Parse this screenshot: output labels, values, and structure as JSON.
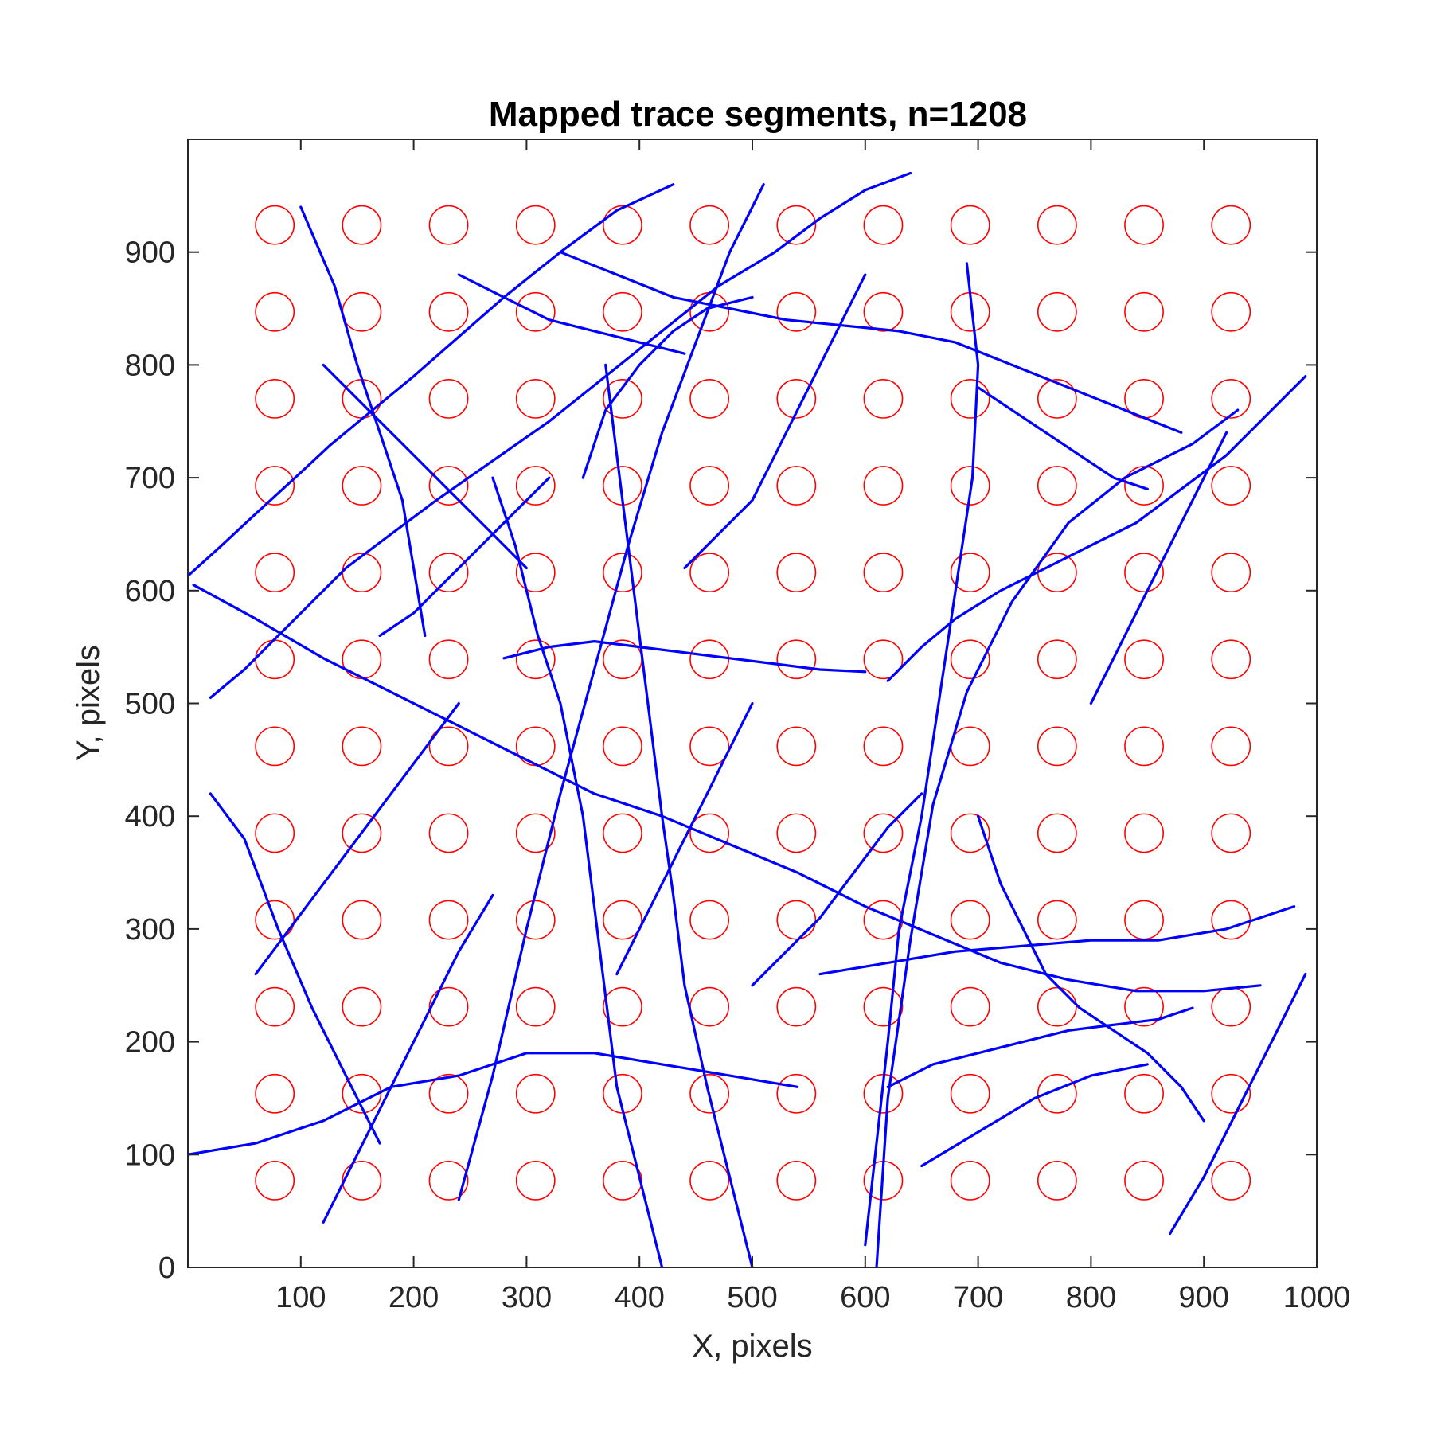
{
  "chart_data": {
    "type": "scatter",
    "title": "Mapped trace segments, n=1208",
    "xlabel": "X, pixels",
    "ylabel": "Y, pixels",
    "xlim": [
      0,
      1000
    ],
    "ylim": [
      0,
      1000
    ],
    "x_ticks": [
      100,
      200,
      300,
      400,
      500,
      600,
      700,
      800,
      900,
      1000
    ],
    "y_ticks": [
      0,
      100,
      200,
      300,
      400,
      500,
      600,
      700,
      800,
      900
    ],
    "grid": false,
    "colors": {
      "circles": "#ff0000",
      "segments": "#0000ff",
      "axes": "#262626"
    },
    "circle_grid": {
      "x": [
        77,
        154,
        231,
        308,
        385,
        462,
        539,
        616,
        693,
        770,
        847,
        924
      ],
      "y": [
        77,
        154,
        231,
        308,
        385,
        462,
        539,
        616,
        693,
        770,
        847,
        924
      ],
      "radius": 17
    },
    "series": [
      {
        "type": "segments",
        "count": 1208,
        "segments": [
          [
            [
              0,
              613
            ],
            [
              30,
              640
            ],
            [
              60,
              668
            ],
            [
              95,
              700
            ],
            [
              125,
              728
            ],
            [
              160,
              757
            ],
            [
              200,
              790
            ],
            [
              240,
              825
            ],
            [
              280,
              860
            ],
            [
              330,
              900
            ],
            [
              380,
              937
            ],
            [
              430,
              960
            ]
          ],
          [
            [
              20,
              505
            ],
            [
              50,
              530
            ],
            [
              80,
              560
            ],
            [
              110,
              590
            ],
            [
              140,
              620
            ],
            [
              180,
              650
            ],
            [
              220,
              680
            ],
            [
              270,
              715
            ],
            [
              320,
              750
            ],
            [
              370,
              790
            ],
            [
              420,
              830
            ],
            [
              470,
              870
            ],
            [
              520,
              900
            ],
            [
              560,
              930
            ],
            [
              600,
              955
            ],
            [
              640,
              970
            ]
          ],
          [
            [
              5,
              605
            ],
            [
              60,
              575
            ],
            [
              120,
              540
            ],
            [
              180,
              510
            ],
            [
              240,
              480
            ],
            [
              300,
              450
            ],
            [
              360,
              420
            ],
            [
              420,
              400
            ],
            [
              480,
              375
            ],
            [
              540,
              350
            ],
            [
              600,
              320
            ],
            [
              660,
              295
            ],
            [
              720,
              270
            ],
            [
              780,
              255
            ],
            [
              840,
              245
            ],
            [
              900,
              245
            ],
            [
              950,
              250
            ]
          ],
          [
            [
              20,
              420
            ],
            [
              50,
              380
            ],
            [
              80,
              300
            ],
            [
              110,
              230
            ],
            [
              140,
              170
            ],
            [
              170,
              110
            ]
          ],
          [
            [
              240,
              60
            ],
            [
              270,
              170
            ],
            [
              300,
              300
            ],
            [
              330,
              420
            ],
            [
              360,
              530
            ],
            [
              390,
              640
            ],
            [
              420,
              740
            ],
            [
              450,
              820
            ],
            [
              480,
              900
            ],
            [
              510,
              960
            ]
          ],
          [
            [
              420,
              0
            ],
            [
              400,
              80
            ],
            [
              380,
              160
            ],
            [
              370,
              240
            ],
            [
              360,
              320
            ],
            [
              350,
              400
            ],
            [
              330,
              500
            ],
            [
              310,
              560
            ],
            [
              290,
              640
            ],
            [
              270,
              700
            ]
          ],
          [
            [
              600,
              20
            ],
            [
              610,
              110
            ],
            [
              620,
              200
            ],
            [
              630,
              300
            ],
            [
              650,
              400
            ],
            [
              665,
              500
            ],
            [
              680,
              600
            ],
            [
              695,
              700
            ],
            [
              700,
              800
            ],
            [
              690,
              890
            ]
          ],
          [
            [
              610,
              0
            ],
            [
              620,
              150
            ],
            [
              640,
              290
            ],
            [
              660,
              410
            ],
            [
              690,
              510
            ],
            [
              730,
              590
            ],
            [
              780,
              660
            ],
            [
              830,
              700
            ],
            [
              890,
              730
            ],
            [
              930,
              760
            ]
          ],
          [
            [
              500,
              0
            ],
            [
              480,
              80
            ],
            [
              460,
              160
            ],
            [
              440,
              250
            ],
            [
              430,
              330
            ],
            [
              420,
              400
            ],
            [
              410,
              480
            ],
            [
              400,
              560
            ],
            [
              390,
              640
            ],
            [
              380,
              720
            ],
            [
              370,
              800
            ]
          ],
          [
            [
              620,
              520
            ],
            [
              650,
              550
            ],
            [
              680,
              575
            ],
            [
              720,
              600
            ],
            [
              760,
              620
            ],
            [
              800,
              640
            ],
            [
              840,
              660
            ],
            [
              880,
              690
            ],
            [
              920,
              720
            ],
            [
              960,
              760
            ],
            [
              990,
              790
            ]
          ],
          [
            [
              280,
              540
            ],
            [
              320,
              550
            ],
            [
              360,
              555
            ],
            [
              400,
              550
            ],
            [
              440,
              545
            ],
            [
              480,
              540
            ],
            [
              520,
              535
            ],
            [
              560,
              530
            ],
            [
              600,
              528
            ]
          ],
          [
            [
              330,
              900
            ],
            [
              380,
              880
            ],
            [
              430,
              860
            ],
            [
              480,
              850
            ],
            [
              530,
              840
            ],
            [
              580,
              835
            ],
            [
              630,
              830
            ],
            [
              680,
              820
            ],
            [
              730,
              800
            ],
            [
              780,
              780
            ],
            [
              830,
              760
            ],
            [
              880,
              740
            ]
          ],
          [
            [
              0,
              100
            ],
            [
              60,
              110
            ],
            [
              120,
              130
            ],
            [
              180,
              160
            ],
            [
              240,
              170
            ],
            [
              300,
              190
            ],
            [
              360,
              190
            ],
            [
              420,
              180
            ],
            [
              480,
              170
            ],
            [
              540,
              160
            ]
          ],
          [
            [
              560,
              260
            ],
            [
              620,
              270
            ],
            [
              680,
              280
            ],
            [
              740,
              285
            ],
            [
              800,
              290
            ],
            [
              860,
              290
            ],
            [
              920,
              300
            ],
            [
              980,
              320
            ]
          ],
          [
            [
              700,
              400
            ],
            [
              720,
              340
            ],
            [
              740,
              300
            ],
            [
              760,
              260
            ],
            [
              790,
              230
            ],
            [
              820,
              210
            ],
            [
              850,
              190
            ],
            [
              880,
              160
            ],
            [
              900,
              130
            ]
          ],
          [
            [
              620,
              160
            ],
            [
              660,
              180
            ],
            [
              700,
              190
            ],
            [
              740,
              200
            ],
            [
              780,
              210
            ],
            [
              820,
              215
            ],
            [
              860,
              220
            ],
            [
              890,
              230
            ]
          ],
          [
            [
              100,
              940
            ],
            [
              130,
              870
            ],
            [
              150,
              800
            ],
            [
              170,
              740
            ],
            [
              190,
              680
            ],
            [
              200,
              620
            ],
            [
              210,
              560
            ]
          ],
          [
            [
              440,
              620
            ],
            [
              470,
              650
            ],
            [
              500,
              680
            ],
            [
              520,
              720
            ],
            [
              540,
              760
            ],
            [
              560,
              800
            ],
            [
              580,
              840
            ],
            [
              600,
              880
            ]
          ],
          [
            [
              350,
              700
            ],
            [
              370,
              760
            ],
            [
              400,
              800
            ],
            [
              430,
              830
            ],
            [
              460,
              850
            ],
            [
              500,
              860
            ]
          ],
          [
            [
              700,
              780
            ],
            [
              730,
              760
            ],
            [
              760,
              740
            ],
            [
              790,
              720
            ],
            [
              820,
              700
            ],
            [
              850,
              690
            ]
          ],
          [
            [
              60,
              260
            ],
            [
              90,
              300
            ],
            [
              120,
              340
            ],
            [
              150,
              380
            ],
            [
              180,
              420
            ],
            [
              210,
              460
            ],
            [
              240,
              500
            ]
          ],
          [
            [
              120,
              40
            ],
            [
              150,
              100
            ],
            [
              180,
              160
            ],
            [
              210,
              220
            ],
            [
              240,
              280
            ],
            [
              270,
              330
            ]
          ],
          [
            [
              870,
              30
            ],
            [
              900,
              80
            ],
            [
              930,
              140
            ],
            [
              960,
              200
            ],
            [
              990,
              260
            ]
          ],
          [
            [
              800,
              500
            ],
            [
              820,
              540
            ],
            [
              840,
              580
            ],
            [
              860,
              620
            ],
            [
              880,
              660
            ],
            [
              900,
              700
            ],
            [
              920,
              740
            ]
          ],
          [
            [
              650,
              90
            ],
            [
              700,
              120
            ],
            [
              750,
              150
            ],
            [
              800,
              170
            ],
            [
              850,
              180
            ]
          ],
          [
            [
              500,
              250
            ],
            [
              530,
              280
            ],
            [
              560,
              310
            ],
            [
              590,
              350
            ],
            [
              620,
              390
            ],
            [
              650,
              420
            ]
          ],
          [
            [
              380,
              260
            ],
            [
              400,
              300
            ],
            [
              420,
              340
            ],
            [
              440,
              380
            ],
            [
              460,
              420
            ],
            [
              480,
              460
            ],
            [
              500,
              500
            ]
          ],
          [
            [
              170,
              560
            ],
            [
              200,
              580
            ],
            [
              230,
              610
            ],
            [
              260,
              640
            ],
            [
              290,
              670
            ],
            [
              320,
              700
            ]
          ],
          [
            [
              240,
              880
            ],
            [
              280,
              860
            ],
            [
              320,
              840
            ],
            [
              360,
              830
            ],
            [
              400,
              820
            ],
            [
              440,
              810
            ]
          ],
          [
            [
              120,
              800
            ],
            [
              150,
              770
            ],
            [
              180,
              740
            ],
            [
              210,
              710
            ],
            [
              240,
              680
            ],
            [
              270,
              650
            ],
            [
              300,
              620
            ]
          ]
        ]
      }
    ]
  }
}
